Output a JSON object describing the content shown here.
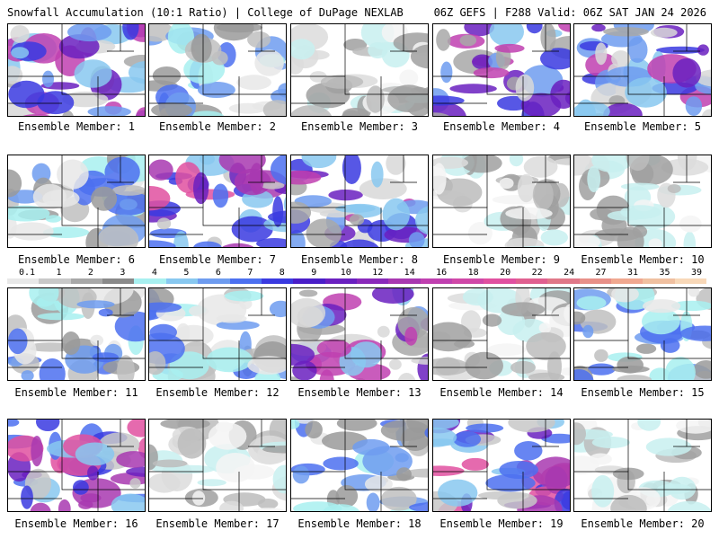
{
  "header": {
    "title_left": "Snowfall Accumulation (10:1 Ratio) | College of DuPage NEXLAB",
    "title_right": "06Z GEFS | F288 Valid: 06Z SAT JAN 24 2026"
  },
  "members": [
    {
      "label": "Ensemble Member: 1",
      "intensity": "high"
    },
    {
      "label": "Ensemble Member: 2",
      "intensity": "medium"
    },
    {
      "label": "Ensemble Member: 3",
      "intensity": "low"
    },
    {
      "label": "Ensemble Member: 4",
      "intensity": "high"
    },
    {
      "label": "Ensemble Member: 5",
      "intensity": "high"
    },
    {
      "label": "Ensemble Member: 6",
      "intensity": "medium"
    },
    {
      "label": "Ensemble Member: 7",
      "intensity": "very-high"
    },
    {
      "label": "Ensemble Member: 8",
      "intensity": "high"
    },
    {
      "label": "Ensemble Member: 9",
      "intensity": "low"
    },
    {
      "label": "Ensemble Member: 10",
      "intensity": "low"
    },
    {
      "label": "Ensemble Member: 11",
      "intensity": "medium"
    },
    {
      "label": "Ensemble Member: 12",
      "intensity": "medium"
    },
    {
      "label": "Ensemble Member: 13",
      "intensity": "high"
    },
    {
      "label": "Ensemble Member: 14",
      "intensity": "low"
    },
    {
      "label": "Ensemble Member: 15",
      "intensity": "medium"
    },
    {
      "label": "Ensemble Member: 16",
      "intensity": "very-high"
    },
    {
      "label": "Ensemble Member: 17",
      "intensity": "low"
    },
    {
      "label": "Ensemble Member: 18",
      "intensity": "medium"
    },
    {
      "label": "Ensemble Member: 19",
      "intensity": "very-high"
    },
    {
      "label": "Ensemble Member: 20",
      "intensity": "low"
    }
  ],
  "colorbar": {
    "ticks": [
      "0.1",
      "1",
      "2",
      "3",
      "4",
      "5",
      "6",
      "7",
      "8",
      "9",
      "10",
      "12",
      "14",
      "16",
      "18",
      "20",
      "22",
      "24",
      "27",
      "31",
      "35",
      "39"
    ],
    "colors": [
      "#e8e8e8",
      "#c8c8c8",
      "#a8a8a8",
      "#8a8a8a",
      "#a8f0f0",
      "#88c8f0",
      "#6e9cf0",
      "#4c70f0",
      "#3a3ae0",
      "#4a1ec8",
      "#6a20c0",
      "#8a2aba",
      "#a838b0",
      "#c040b0",
      "#d048a8",
      "#e050a0",
      "#e06090",
      "#e07888",
      "#e89088",
      "#f0a890",
      "#f0c0a0",
      "#f8d8b8"
    ]
  }
}
